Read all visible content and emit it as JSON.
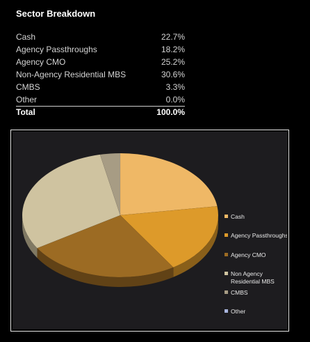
{
  "heading": "Sector Breakdown",
  "rows": [
    {
      "label": "Cash",
      "value": "22.7%"
    },
    {
      "label": "Agency Passthroughs",
      "value": "18.2%"
    },
    {
      "label": "Agency CMO",
      "value": "25.2%"
    },
    {
      "label": "Non-Agency Residential MBS",
      "value": "30.6%"
    },
    {
      "label": "CMBS",
      "value": "3.3%"
    },
    {
      "label": "Other",
      "value": "0.0%"
    }
  ],
  "total": {
    "label": "Total",
    "value": "100.0%"
  },
  "chart_data": {
    "type": "pie",
    "categories": [
      "Cash",
      "Agency Passthroughs",
      "Agency CMO",
      "Non-Agency Residential MBS",
      "CMBS",
      "Other"
    ],
    "values": [
      22.7,
      18.2,
      25.2,
      30.6,
      3.3,
      0.0
    ],
    "legend_labels": [
      [
        "Cash"
      ],
      [
        "Agency Passthroughs"
      ],
      [
        "Agency CMO"
      ],
      [
        "Non Agency",
        "Residential MBS"
      ],
      [
        "CMBS"
      ],
      [
        "Other"
      ]
    ],
    "colors": [
      "#efb866",
      "#dd9a2a",
      "#9c6b23",
      "#cfc3a0",
      "#a79c84",
      "#a8b4dc"
    ],
    "legend_placement": "right",
    "style": "3d"
  }
}
